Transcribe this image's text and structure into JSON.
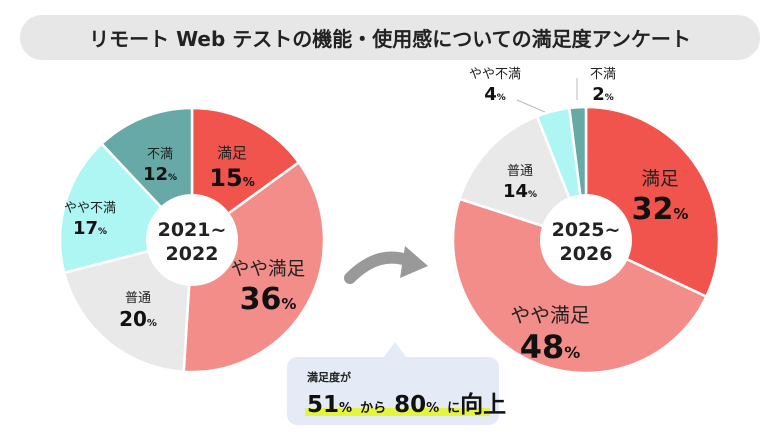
{
  "title": "リモート Web テストの機能・使用感についての満足度アンケート",
  "chart_data": [
    {
      "type": "pie",
      "center_label": [
        "2021~",
        "2022"
      ],
      "categories": [
        "満足",
        "やや満足",
        "普通",
        "やや不満",
        "不満"
      ],
      "values": [
        15,
        36,
        20,
        17,
        12
      ],
      "unit": "%",
      "colors": [
        "#f0544c",
        "#f38d89",
        "#e9e9e9",
        "#adf6f3",
        "#66a9a6"
      ]
    },
    {
      "type": "pie",
      "center_label": [
        "2025~",
        "2026"
      ],
      "categories": [
        "満足",
        "やや満足",
        "普通",
        "やや不満",
        "不満"
      ],
      "values": [
        32,
        48,
        14,
        4,
        2
      ],
      "unit": "%",
      "colors": [
        "#f0544c",
        "#f38d89",
        "#e9e9e9",
        "#adf6f3",
        "#66a9a6"
      ]
    }
  ],
  "callout": {
    "subtitle": "満足度が",
    "from": "51",
    "from_unit": "%",
    "kara": "から",
    "to": "80",
    "to_unit": "%",
    "ni": "に",
    "result": "向上",
    "highlight_color": "#e4f53d"
  }
}
